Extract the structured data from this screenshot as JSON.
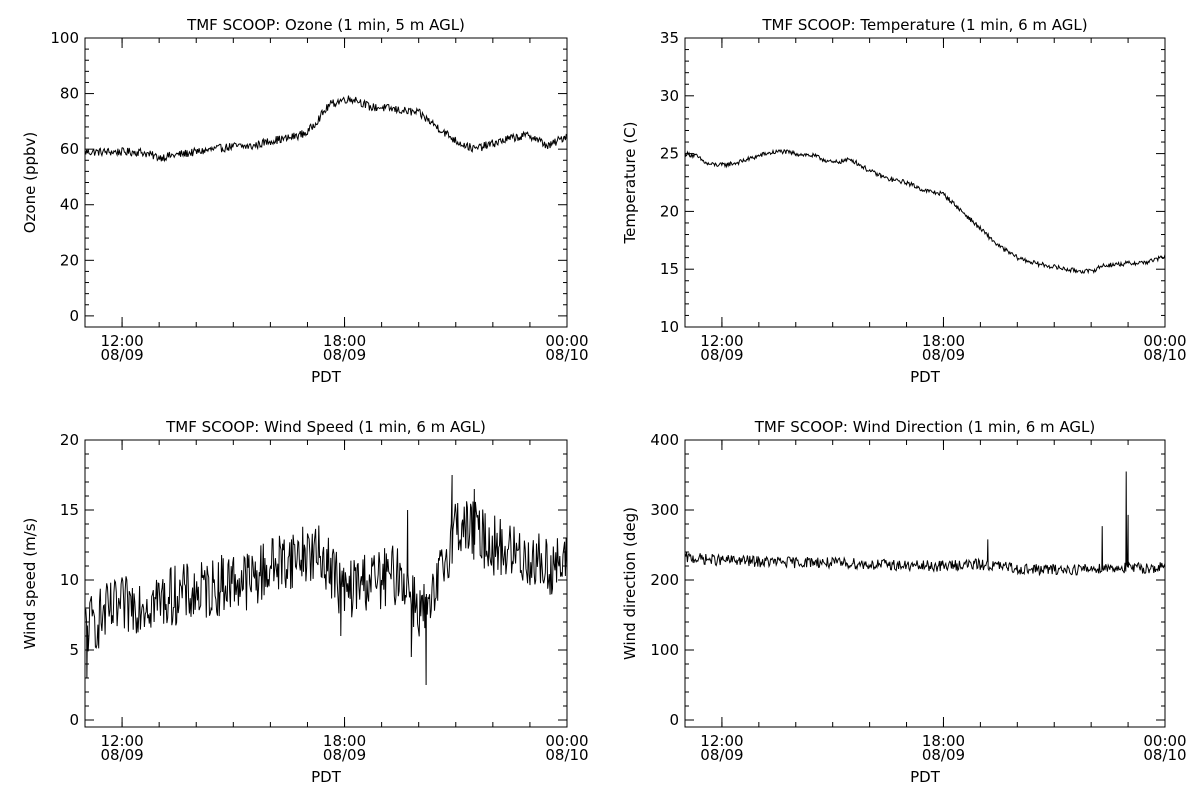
{
  "time_axis": {
    "label": "PDT",
    "ticks": [
      {
        "x": 12,
        "time": "12:00",
        "date": "08/09"
      },
      {
        "x": 18,
        "time": "18:00",
        "date": "08/09"
      },
      {
        "x": 24,
        "time": "00:00",
        "date": "08/10"
      }
    ]
  },
  "chart_data": [
    {
      "type": "line",
      "title": "TMF SCOOP: Ozone (1 min, 5 m AGL)",
      "xlabel": "PDT",
      "ylabel": "Ozone (ppbv)",
      "xlim": [
        11.0,
        24.0
      ],
      "ylim": [
        -4,
        100
      ],
      "yticks": [
        0,
        20,
        40,
        60,
        80,
        100
      ],
      "noise": 1.5,
      "spikes": [],
      "series": [
        {
          "x": [
            11.0,
            11.5,
            12.0,
            12.5,
            13.0,
            13.5,
            14.0,
            14.5,
            15.0,
            15.5,
            16.0,
            16.5,
            17.0,
            17.3,
            17.6,
            18.0,
            18.3,
            18.7,
            19.0,
            19.5,
            20.0,
            20.5,
            21.0,
            21.5,
            22.0,
            22.5,
            23.0,
            23.5,
            24.0
          ],
          "y": [
            59,
            59,
            59,
            59,
            57,
            58,
            59,
            60,
            61,
            61,
            63,
            64,
            66,
            71,
            76,
            78,
            78,
            75,
            75,
            74,
            73,
            68,
            63,
            60,
            62,
            64,
            65,
            61,
            65
          ]
        }
      ]
    },
    {
      "type": "line",
      "title": "TMF SCOOP: Temperature (1 min, 6 m AGL)",
      "xlabel": "PDT",
      "ylabel": "Temperature (C)",
      "xlim": [
        11.0,
        24.0
      ],
      "ylim": [
        10,
        35
      ],
      "yticks": [
        10,
        15,
        20,
        25,
        30,
        35
      ],
      "noise": 0.2,
      "spikes": [],
      "series": [
        {
          "x": [
            11.0,
            11.3,
            11.6,
            12.0,
            12.4,
            12.8,
            13.2,
            13.6,
            14.0,
            14.5,
            15.0,
            15.5,
            16.0,
            16.5,
            17.0,
            17.5,
            18.0,
            18.5,
            19.0,
            19.5,
            20.0,
            20.5,
            21.0,
            21.5,
            22.0,
            22.3,
            22.6,
            23.0,
            23.5,
            24.0
          ],
          "y": [
            25.0,
            24.8,
            24.1,
            24.0,
            24.2,
            24.6,
            25.0,
            25.2,
            25.0,
            24.8,
            24.2,
            24.5,
            23.5,
            22.8,
            22.5,
            21.8,
            21.5,
            20.0,
            18.5,
            17.0,
            16.0,
            15.5,
            15.2,
            14.9,
            14.8,
            15.3,
            15.4,
            15.5,
            15.6,
            16.1
          ]
        }
      ]
    },
    {
      "type": "line",
      "title": "TMF SCOOP: Wind Speed (1 min, 6 m AGL)",
      "xlabel": "PDT",
      "ylabel": "Wind speed (m/s)",
      "xlim": [
        11.0,
        24.0
      ],
      "ylim": [
        -0.5,
        20
      ],
      "yticks": [
        0,
        5,
        10,
        15,
        20
      ],
      "noise": 2.2,
      "spikes": [
        [
          11.05,
          3.0
        ],
        [
          19.8,
          4.5
        ],
        [
          20.2,
          2.5
        ],
        [
          20.9,
          17.5
        ],
        [
          19.7,
          15.0
        ],
        [
          17.9,
          6.0
        ],
        [
          21.5,
          16.5
        ]
      ],
      "series": [
        {
          "x": [
            11.0,
            11.5,
            12.0,
            12.5,
            13.0,
            13.5,
            14.0,
            14.5,
            15.0,
            15.5,
            16.0,
            16.5,
            17.0,
            17.5,
            18.0,
            18.5,
            19.0,
            19.5,
            20.0,
            20.3,
            20.6,
            21.0,
            21.5,
            22.0,
            22.5,
            23.0,
            23.5,
            24.0
          ],
          "y": [
            6.5,
            7.5,
            8.0,
            8.5,
            8.5,
            9.0,
            9.0,
            9.5,
            10.0,
            10.0,
            11.0,
            11.5,
            12.0,
            11.5,
            9.0,
            10.0,
            10.0,
            10.5,
            8.0,
            7.5,
            10.5,
            14.0,
            13.5,
            12.5,
            12.0,
            11.5,
            11.0,
            11.0
          ]
        }
      ]
    },
    {
      "type": "line",
      "title": "TMF SCOOP: Wind Direction (1 min, 6 m AGL)",
      "xlabel": "PDT",
      "ylabel": "Wind direction (deg)",
      "xlim": [
        11.0,
        24.0
      ],
      "ylim": [
        -10,
        400
      ],
      "yticks": [
        0,
        100,
        200,
        300,
        400
      ],
      "noise": 8,
      "spikes": [
        [
          19.2,
          258
        ],
        [
          22.3,
          277
        ],
        [
          22.95,
          355
        ],
        [
          23.0,
          293
        ]
      ],
      "series": [
        {
          "x": [
            11.0,
            11.5,
            12.0,
            12.5,
            13.0,
            13.5,
            14.0,
            14.5,
            15.0,
            15.5,
            16.0,
            16.5,
            17.0,
            17.5,
            18.0,
            18.5,
            19.0,
            19.5,
            20.0,
            20.5,
            21.0,
            21.5,
            22.0,
            22.5,
            23.0,
            23.5,
            24.0
          ],
          "y": [
            232,
            230,
            228,
            228,
            226,
            226,
            225,
            226,
            224,
            224,
            222,
            222,
            220,
            220,
            220,
            222,
            222,
            220,
            216,
            215,
            215,
            215,
            216,
            218,
            217,
            217,
            218
          ]
        }
      ]
    }
  ]
}
